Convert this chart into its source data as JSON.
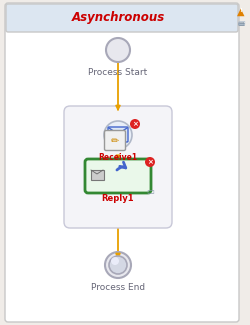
{
  "title": "Asynchronous",
  "bg_outer": "#f0ece8",
  "bg_inner": "#ffffff",
  "border_color": "#c8c8c8",
  "title_color": "#cc0000",
  "title_bg": "#dce6f1",
  "flow_line_color": "#e8a000",
  "process_start_label": "Process Start",
  "process_end_label": "Process End",
  "node_circle_color": "#e8e8ee",
  "node_circle_edge": "#a8a8b8",
  "seq_box_bg": "#f4f4f8",
  "seq_box_border": "#c8c8d8",
  "receive_label": "Receive1",
  "reply_label": "Reply1",
  "reply_border": "#338833",
  "reply_bg": "#eaf8ea",
  "icon_blue": "#4466cc",
  "error_red": "#dd2222",
  "book_color": "#8899aa",
  "warning_color": "#e08000",
  "fig_width": 2.5,
  "fig_height": 3.25,
  "dpi": 100
}
